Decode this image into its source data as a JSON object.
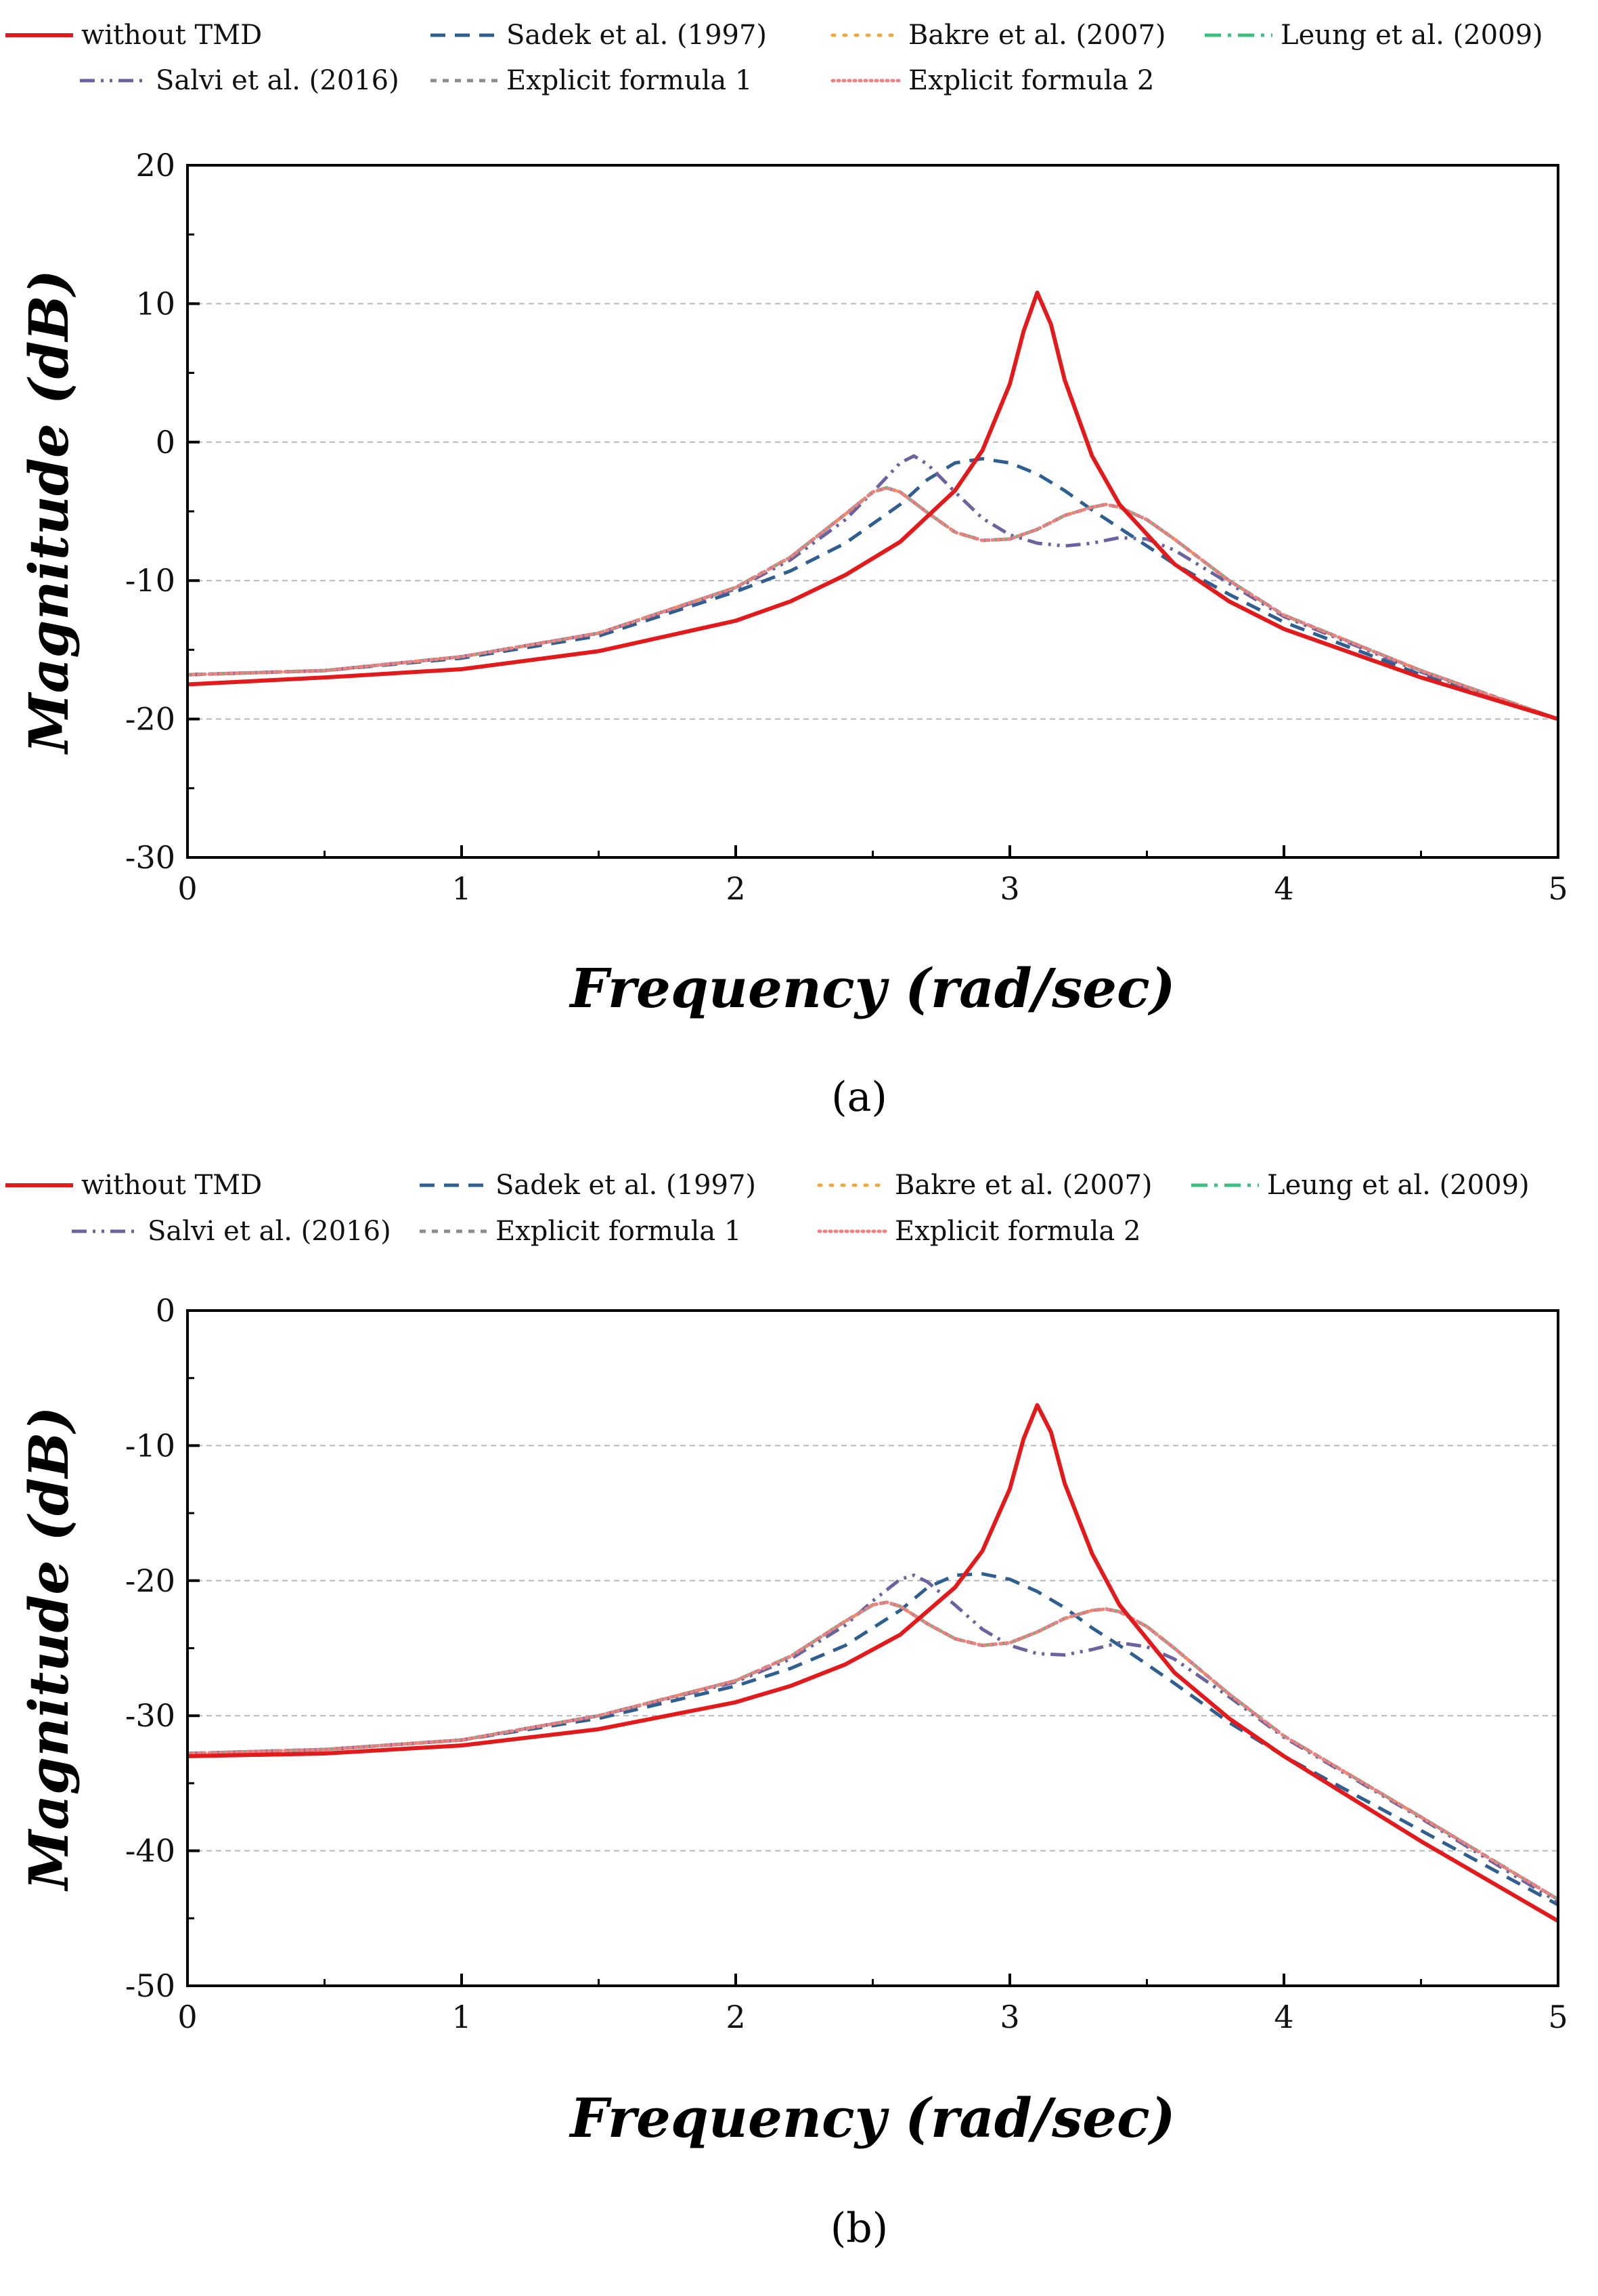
{
  "chart_data": [
    {
      "panel_label": "(a)",
      "type": "line",
      "title": "",
      "xlabel": "Frequency (rad/sec)",
      "ylabel": "Magnitude (dB)",
      "xlim": [
        0,
        5
      ],
      "ylim": [
        -30,
        20
      ],
      "xticks": [
        0,
        1,
        2,
        3,
        4,
        5
      ],
      "yticks": [
        -30,
        -20,
        -10,
        0,
        10,
        20
      ],
      "grid": "horizontal dashed",
      "legend_position": "top",
      "series": [
        {
          "name": "without TMD",
          "color": "#e31a1c",
          "dash": "solid",
          "x": [
            0,
            0.5,
            1.0,
            1.5,
            2.0,
            2.2,
            2.4,
            2.6,
            2.8,
            2.9,
            3.0,
            3.05,
            3.1,
            3.15,
            3.2,
            3.3,
            3.4,
            3.6,
            3.8,
            4.0,
            4.5,
            5.0
          ],
          "y": [
            -17.5,
            -17.0,
            -16.4,
            -15.1,
            -12.9,
            -11.5,
            -9.6,
            -7.2,
            -3.5,
            -0.6,
            4.2,
            8.0,
            10.8,
            8.5,
            4.5,
            -1.0,
            -4.5,
            -8.8,
            -11.5,
            -13.5,
            -17.0,
            -20.0
          ]
        },
        {
          "name": "Sadek et al. (1997)",
          "color": "#2f5f91",
          "dash": "dash",
          "x": [
            0,
            0.5,
            1.0,
            1.5,
            2.0,
            2.2,
            2.4,
            2.6,
            2.7,
            2.8,
            2.9,
            3.0,
            3.1,
            3.2,
            3.3,
            3.4,
            3.6,
            3.8,
            4.0,
            4.5,
            5.0
          ],
          "y": [
            -16.8,
            -16.5,
            -15.6,
            -14.0,
            -10.8,
            -9.3,
            -7.3,
            -4.5,
            -2.7,
            -1.5,
            -1.2,
            -1.5,
            -2.3,
            -3.5,
            -4.9,
            -6.2,
            -8.8,
            -11.0,
            -13.0,
            -16.8,
            -20.0
          ]
        },
        {
          "name": "Bakre et al. (2007)",
          "color": "#f2a73b",
          "dash": "dot",
          "x": [
            0,
            0.5,
            1.0,
            1.5,
            2.0,
            2.2,
            2.4,
            2.5,
            2.55,
            2.6,
            2.7,
            2.8,
            2.9,
            3.0,
            3.1,
            3.2,
            3.3,
            3.35,
            3.4,
            3.5,
            3.6,
            3.8,
            4.0,
            4.5,
            5.0
          ],
          "y": [
            -16.8,
            -16.5,
            -15.5,
            -13.8,
            -10.5,
            -8.3,
            -5.2,
            -3.6,
            -3.3,
            -3.6,
            -5.1,
            -6.5,
            -7.1,
            -7.0,
            -6.3,
            -5.3,
            -4.7,
            -4.5,
            -4.7,
            -5.6,
            -7.0,
            -10.0,
            -12.5,
            -16.5,
            -20.0
          ]
        },
        {
          "name": "Leung et al. (2009)",
          "color": "#3cc080",
          "dash": "dashdot",
          "x": [
            0,
            0.5,
            1.0,
            1.5,
            2.0,
            2.2,
            2.4,
            2.5,
            2.55,
            2.6,
            2.7,
            2.8,
            2.9,
            3.0,
            3.1,
            3.2,
            3.3,
            3.35,
            3.4,
            3.5,
            3.6,
            3.8,
            4.0,
            4.5,
            5.0
          ],
          "y": [
            -16.8,
            -16.5,
            -15.5,
            -13.8,
            -10.5,
            -8.3,
            -5.2,
            -3.6,
            -3.3,
            -3.6,
            -5.1,
            -6.5,
            -7.1,
            -7.0,
            -6.3,
            -5.3,
            -4.7,
            -4.5,
            -4.7,
            -5.6,
            -7.0,
            -10.0,
            -12.5,
            -16.5,
            -20.0
          ]
        },
        {
          "name": "Salvi et al. (2016)",
          "color": "#6a63a0",
          "dash": "dashdotdot",
          "x": [
            0,
            0.5,
            1.0,
            1.5,
            2.0,
            2.2,
            2.4,
            2.5,
            2.6,
            2.65,
            2.7,
            2.8,
            2.9,
            3.0,
            3.1,
            3.2,
            3.3,
            3.4,
            3.5,
            3.6,
            3.8,
            4.0,
            4.5,
            5.0
          ],
          "y": [
            -16.8,
            -16.5,
            -15.5,
            -13.8,
            -10.6,
            -8.5,
            -5.6,
            -3.6,
            -1.5,
            -1.0,
            -1.6,
            -3.6,
            -5.5,
            -6.7,
            -7.3,
            -7.5,
            -7.3,
            -6.9,
            -7.0,
            -7.8,
            -10.2,
            -12.6,
            -16.6,
            -20.0
          ]
        },
        {
          "name": "Explicit formula 1",
          "color": "#8c8c8c",
          "dash": "shortdash",
          "x": [
            0,
            0.5,
            1.0,
            1.5,
            2.0,
            2.2,
            2.4,
            2.5,
            2.55,
            2.6,
            2.7,
            2.8,
            2.9,
            3.0,
            3.1,
            3.2,
            3.3,
            3.35,
            3.4,
            3.5,
            3.6,
            3.8,
            4.0,
            4.5,
            5.0
          ],
          "y": [
            -16.8,
            -16.5,
            -15.5,
            -13.8,
            -10.5,
            -8.3,
            -5.2,
            -3.6,
            -3.3,
            -3.6,
            -5.1,
            -6.5,
            -7.1,
            -7.0,
            -6.3,
            -5.3,
            -4.7,
            -4.5,
            -4.7,
            -5.6,
            -7.0,
            -10.0,
            -12.5,
            -16.5,
            -20.0
          ]
        },
        {
          "name": "Explicit formula 2",
          "color": "#f08080",
          "dash": "finedot",
          "x": [
            0,
            0.5,
            1.0,
            1.5,
            2.0,
            2.2,
            2.4,
            2.5,
            2.55,
            2.6,
            2.7,
            2.8,
            2.9,
            3.0,
            3.1,
            3.2,
            3.3,
            3.35,
            3.4,
            3.5,
            3.6,
            3.8,
            4.0,
            4.5,
            5.0
          ],
          "y": [
            -16.8,
            -16.5,
            -15.5,
            -13.8,
            -10.5,
            -8.3,
            -5.2,
            -3.6,
            -3.3,
            -3.6,
            -5.1,
            -6.5,
            -7.1,
            -7.0,
            -6.3,
            -5.3,
            -4.7,
            -4.5,
            -4.7,
            -5.6,
            -7.0,
            -10.0,
            -12.5,
            -16.5,
            -20.0
          ]
        }
      ]
    },
    {
      "panel_label": "(b)",
      "type": "line",
      "title": "",
      "xlabel": "Frequency (rad/sec)",
      "ylabel": "Magnitude (dB)",
      "xlim": [
        0,
        5
      ],
      "ylim": [
        -50,
        0
      ],
      "xticks": [
        0,
        1,
        2,
        3,
        4,
        5
      ],
      "yticks": [
        -50,
        -40,
        -30,
        -20,
        -10,
        0
      ],
      "grid": "horizontal dashed",
      "legend_position": "top",
      "series": [
        {
          "name": "without TMD",
          "color": "#e31a1c",
          "dash": "solid",
          "x": [
            0,
            0.5,
            1.0,
            1.5,
            2.0,
            2.2,
            2.4,
            2.6,
            2.8,
            2.9,
            3.0,
            3.05,
            3.1,
            3.15,
            3.2,
            3.3,
            3.4,
            3.6,
            3.8,
            4.0,
            4.5,
            5.0
          ],
          "y": [
            -33.0,
            -32.8,
            -32.2,
            -31.0,
            -29.0,
            -27.8,
            -26.2,
            -24.0,
            -20.5,
            -17.8,
            -13.2,
            -9.5,
            -7.0,
            -9.0,
            -12.8,
            -18.0,
            -21.8,
            -26.8,
            -30.2,
            -33.0,
            -39.3,
            -45.2
          ]
        },
        {
          "name": "Sadek et al. (1997)",
          "color": "#2f5f91",
          "dash": "dash",
          "x": [
            0,
            0.5,
            1.0,
            1.5,
            2.0,
            2.2,
            2.4,
            2.6,
            2.7,
            2.8,
            2.9,
            3.0,
            3.1,
            3.2,
            3.3,
            3.4,
            3.6,
            3.8,
            4.0,
            4.5,
            5.0
          ],
          "y": [
            -32.8,
            -32.5,
            -31.8,
            -30.2,
            -27.8,
            -26.5,
            -24.8,
            -22.2,
            -20.5,
            -19.6,
            -19.5,
            -19.9,
            -20.8,
            -22.0,
            -23.5,
            -24.8,
            -27.6,
            -30.5,
            -33.0,
            -38.5,
            -44.0
          ]
        },
        {
          "name": "Bakre et al. (2007)",
          "color": "#f2a73b",
          "dash": "dot",
          "x": [
            0,
            0.5,
            1.0,
            1.5,
            2.0,
            2.2,
            2.4,
            2.5,
            2.55,
            2.6,
            2.7,
            2.8,
            2.9,
            3.0,
            3.1,
            3.2,
            3.3,
            3.35,
            3.4,
            3.5,
            3.6,
            3.8,
            4.0,
            4.5,
            5.0
          ],
          "y": [
            -32.8,
            -32.5,
            -31.8,
            -30.0,
            -27.4,
            -25.6,
            -23.0,
            -21.8,
            -21.6,
            -21.9,
            -23.2,
            -24.3,
            -24.8,
            -24.6,
            -23.8,
            -22.8,
            -22.2,
            -22.1,
            -22.3,
            -23.4,
            -25.0,
            -28.4,
            -31.5,
            -37.5,
            -43.6
          ]
        },
        {
          "name": "Leung et al. (2009)",
          "color": "#3cc080",
          "dash": "dashdot",
          "x": [
            0,
            0.5,
            1.0,
            1.5,
            2.0,
            2.2,
            2.4,
            2.5,
            2.55,
            2.6,
            2.7,
            2.8,
            2.9,
            3.0,
            3.1,
            3.2,
            3.3,
            3.35,
            3.4,
            3.5,
            3.6,
            3.8,
            4.0,
            4.5,
            5.0
          ],
          "y": [
            -32.8,
            -32.5,
            -31.8,
            -30.0,
            -27.4,
            -25.6,
            -23.0,
            -21.8,
            -21.6,
            -21.9,
            -23.2,
            -24.3,
            -24.8,
            -24.6,
            -23.8,
            -22.8,
            -22.2,
            -22.1,
            -22.3,
            -23.4,
            -25.0,
            -28.4,
            -31.5,
            -37.5,
            -43.6
          ]
        },
        {
          "name": "Salvi et al. (2016)",
          "color": "#6a63a0",
          "dash": "dashdotdot",
          "x": [
            0,
            0.5,
            1.0,
            1.5,
            2.0,
            2.2,
            2.4,
            2.5,
            2.6,
            2.65,
            2.7,
            2.8,
            2.9,
            3.0,
            3.1,
            3.2,
            3.3,
            3.4,
            3.5,
            3.6,
            3.8,
            4.0,
            4.5,
            5.0
          ],
          "y": [
            -32.8,
            -32.5,
            -31.8,
            -30.0,
            -27.5,
            -25.8,
            -23.3,
            -21.5,
            -19.9,
            -19.6,
            -20.1,
            -21.8,
            -23.6,
            -24.8,
            -25.4,
            -25.5,
            -25.1,
            -24.6,
            -24.9,
            -25.8,
            -28.6,
            -31.6,
            -37.6,
            -43.8
          ]
        },
        {
          "name": "Explicit formula 1",
          "color": "#8c8c8c",
          "dash": "shortdash",
          "x": [
            0,
            0.5,
            1.0,
            1.5,
            2.0,
            2.2,
            2.4,
            2.5,
            2.55,
            2.6,
            2.7,
            2.8,
            2.9,
            3.0,
            3.1,
            3.2,
            3.3,
            3.35,
            3.4,
            3.5,
            3.6,
            3.8,
            4.0,
            4.5,
            5.0
          ],
          "y": [
            -32.8,
            -32.5,
            -31.8,
            -30.0,
            -27.4,
            -25.6,
            -23.0,
            -21.8,
            -21.6,
            -21.9,
            -23.2,
            -24.3,
            -24.8,
            -24.6,
            -23.8,
            -22.8,
            -22.2,
            -22.1,
            -22.3,
            -23.4,
            -25.0,
            -28.4,
            -31.5,
            -37.5,
            -43.6
          ]
        },
        {
          "name": "Explicit formula 2",
          "color": "#f08080",
          "dash": "finedot",
          "x": [
            0,
            0.5,
            1.0,
            1.5,
            2.0,
            2.2,
            2.4,
            2.5,
            2.55,
            2.6,
            2.7,
            2.8,
            2.9,
            3.0,
            3.1,
            3.2,
            3.3,
            3.35,
            3.4,
            3.5,
            3.6,
            3.8,
            4.0,
            4.5,
            5.0
          ],
          "y": [
            -32.8,
            -32.5,
            -31.8,
            -30.0,
            -27.4,
            -25.6,
            -23.0,
            -21.8,
            -21.6,
            -21.9,
            -23.2,
            -24.3,
            -24.8,
            -24.6,
            -23.8,
            -22.8,
            -22.2,
            -22.1,
            -22.3,
            -23.4,
            -25.0,
            -28.4,
            -31.5,
            -37.5,
            -43.6
          ]
        }
      ]
    }
  ]
}
